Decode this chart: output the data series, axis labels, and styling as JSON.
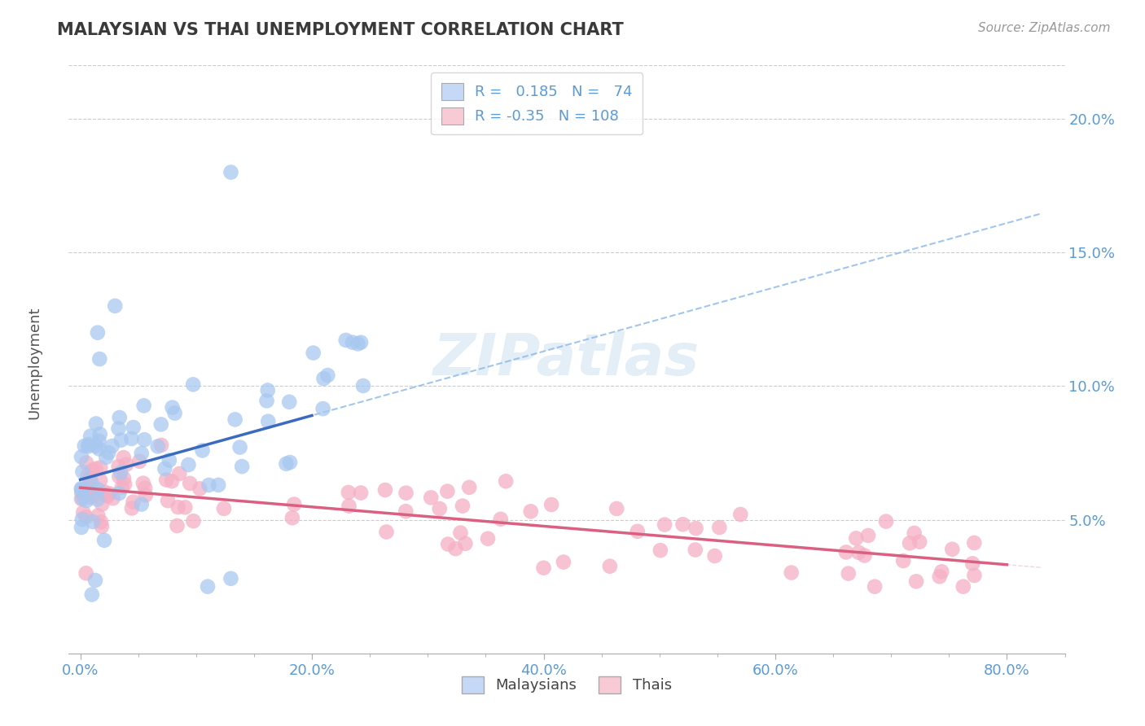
{
  "title": "MALAYSIAN VS THAI UNEMPLOYMENT CORRELATION CHART",
  "source": "Source: ZipAtlas.com",
  "ylabel": "Unemployment",
  "ylim": [
    0,
    22
  ],
  "xlim": [
    -1,
    85
  ],
  "x_tick_vals": [
    0,
    20,
    40,
    60,
    80
  ],
  "x_tick_labels": [
    "0.0%",
    "20.0%",
    "40.0%",
    "60.0%",
    "80.0%"
  ],
  "y_tick_vals": [
    5,
    10,
    15,
    20
  ],
  "y_tick_labels": [
    "5.0%",
    "10.0%",
    "15.0%",
    "20.0%"
  ],
  "malaysians_R": 0.185,
  "malaysians_N": 74,
  "thais_R": -0.35,
  "thais_N": 108,
  "blue_scatter": "#a8c8f0",
  "pink_scatter": "#f5afc5",
  "blue_line": "#3a6bbf",
  "pink_line": "#d96080",
  "blue_dash": "#8ab8e8",
  "grid_color": "#cccccc",
  "title_color": "#3a3a3a",
  "tick_color": "#5b9bd5",
  "legend_blue_box": "#c5d8f5",
  "legend_pink_box": "#f8cad5",
  "watermark_color": "#cce0f0",
  "background": "#ffffff",
  "scatter_size": 180,
  "scatter_alpha": 0.75,
  "mal_intercept": 6.5,
  "mal_slope": 0.12,
  "thai_intercept": 6.2,
  "thai_slope": -0.036
}
